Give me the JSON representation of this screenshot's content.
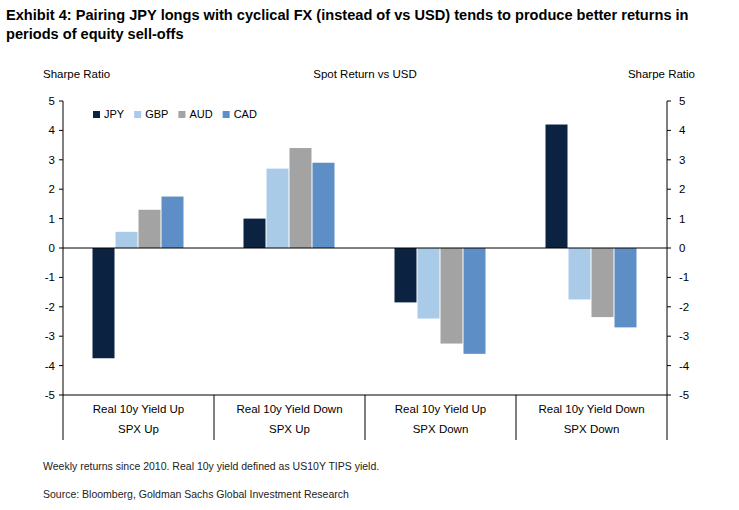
{
  "chart_data": {
    "type": "bar",
    "title": "Exhibit 4: Pairing JPY longs with cyclical FX (instead of vs USD) tends to produce better returns in periods of equity sell-offs",
    "subtitle": "Spot Return vs USD",
    "y_label": "Sharpe Ratio",
    "y2_label": "Sharpe Ratio",
    "categories": [
      "Real 10y Yield Up\nSPX Up",
      "Real 10y Yield Down\nSPX Up",
      "Real 10y Yield Up\nSPX Down",
      "Real 10y Yield Down\nSPX Down"
    ],
    "series": [
      {
        "name": "JPY",
        "color": "#0b2240",
        "values": [
          -3.75,
          1.0,
          -1.85,
          4.2
        ]
      },
      {
        "name": "GBP",
        "color": "#a9cbe8",
        "values": [
          0.55,
          2.7,
          -2.4,
          -1.75
        ]
      },
      {
        "name": "AUD",
        "color": "#a3a3a3",
        "values": [
          1.3,
          3.4,
          -3.25,
          -2.35
        ]
      },
      {
        "name": "CAD",
        "color": "#5d8fc6",
        "values": [
          1.75,
          2.9,
          -3.6,
          -2.7
        ]
      }
    ],
    "ylim": [
      -5,
      5
    ],
    "yticks": [
      -5,
      -4,
      -3,
      -2,
      -1,
      0,
      1,
      2,
      3,
      4,
      5
    ],
    "y2lim": [
      -5,
      5
    ],
    "y2ticks": [
      -5,
      -4,
      -3,
      -2,
      -1,
      0,
      1,
      2,
      3,
      4,
      5
    ],
    "grid": false,
    "legend": "top-left",
    "notes": [
      "Weekly returns since 2010. Real 10y yield defined as US10Y TIPS yield.",
      "Source: Bloomberg, Goldman Sachs Global Investment Research"
    ]
  }
}
